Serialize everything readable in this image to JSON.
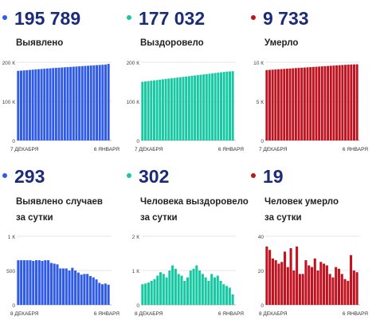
{
  "colors": {
    "blue": "#2f5be7",
    "teal": "#16c9a3",
    "red": "#c0121f",
    "number": "#1a2b7a"
  },
  "top": [
    {
      "value": "195 789",
      "label": "Выявлено",
      "color": "#2f5be7"
    },
    {
      "value": "177 032",
      "label": "Выздоровело",
      "color": "#16c9a3"
    },
    {
      "value": "9 733",
      "label": "Умерло",
      "color": "#c0121f"
    }
  ],
  "bottom": [
    {
      "value": "293",
      "label_line1": "Выявлено случаев",
      "label_line2": "за сутки",
      "color": "#2f5be7"
    },
    {
      "value": "302",
      "label_line1": "Человека выздоровело",
      "label_line2": "за сутки",
      "color": "#16c9a3"
    },
    {
      "value": "19",
      "label_line1": "Человек умерло",
      "label_line2": "за сутки",
      "color": "#c0121f"
    }
  ],
  "chart_data": [
    {
      "type": "bar",
      "name": "Выявлено",
      "color": "#2f5be7",
      "yticks": [
        "0",
        "100 К",
        "200 К"
      ],
      "ytick_values": [
        0,
        100000,
        200000
      ],
      "ylim": [
        0,
        200000
      ],
      "x_start_label": "7 ДЕКАБРЯ",
      "x_end_label": "6 ЯНВАРЯ",
      "values": [
        178000,
        178600,
        179200,
        179800,
        180400,
        181000,
        181600,
        182200,
        182800,
        183400,
        184000,
        184600,
        185100,
        185600,
        186100,
        186600,
        187100,
        187600,
        188100,
        188600,
        189100,
        189600,
        190100,
        190600,
        191100,
        191600,
        192100,
        192600,
        193100,
        193600,
        194100,
        195789
      ]
    },
    {
      "type": "bar",
      "name": "Выздоровело",
      "color": "#16c9a3",
      "yticks": [
        "0",
        "100 К",
        "200 К"
      ],
      "ytick_values": [
        0,
        100000,
        200000
      ],
      "ylim": [
        0,
        200000
      ],
      "x_start_label": "7 ДЕКАБРЯ",
      "x_end_label": "6 ЯНВАРЯ",
      "values": [
        150000,
        150900,
        151800,
        152700,
        153600,
        154500,
        155400,
        156300,
        157200,
        158100,
        159000,
        159900,
        160800,
        161700,
        162600,
        163500,
        164400,
        165300,
        166200,
        167100,
        168000,
        168900,
        169800,
        170700,
        171600,
        172500,
        173400,
        174300,
        175200,
        176000,
        176600,
        177032
      ]
    },
    {
      "type": "bar",
      "name": "Умерло",
      "color": "#c0121f",
      "yticks": [
        "0",
        "5 К",
        "10 К"
      ],
      "ytick_values": [
        0,
        5000,
        10000
      ],
      "ylim": [
        0,
        10000
      ],
      "x_start_label": "7 ДЕКАБРЯ",
      "x_end_label": "6 ЯНВАРЯ",
      "values": [
        9000,
        9025,
        9050,
        9075,
        9100,
        9125,
        9150,
        9175,
        9200,
        9225,
        9250,
        9275,
        9300,
        9325,
        9350,
        9375,
        9400,
        9425,
        9450,
        9475,
        9500,
        9525,
        9550,
        9575,
        9600,
        9625,
        9650,
        9670,
        9690,
        9710,
        9720,
        9733
      ]
    },
    {
      "type": "bar",
      "name": "Выявлено случаев за сутки",
      "color": "#2f5be7",
      "yticks": [
        "0",
        "500",
        "1 К"
      ],
      "ytick_values": [
        0,
        500,
        1000
      ],
      "ylim": [
        0,
        1000
      ],
      "x_start_label": "8 ДЕКАБРЯ",
      "x_end_label": "6 ЯНВАРЯ",
      "values": [
        650,
        650,
        650,
        650,
        650,
        640,
        650,
        650,
        640,
        650,
        650,
        610,
        600,
        590,
        530,
        530,
        530,
        500,
        540,
        500,
        470,
        440,
        450,
        450,
        420,
        400,
        370,
        320,
        300,
        310,
        293
      ]
    },
    {
      "type": "bar",
      "name": "Человека выздоровело за сутки",
      "color": "#16c9a3",
      "yticks": [
        "0",
        "1 К",
        "2 К"
      ],
      "ytick_values": [
        0,
        1000,
        2000
      ],
      "ylim": [
        0,
        2000
      ],
      "x_start_label": "8 ДЕКАБРЯ",
      "x_end_label": "6 ЯНВАРЯ",
      "values": [
        600,
        620,
        650,
        700,
        750,
        850,
        950,
        900,
        800,
        1000,
        1150,
        1050,
        900,
        850,
        700,
        800,
        1000,
        1050,
        1150,
        1000,
        900,
        800,
        700,
        900,
        800,
        850,
        700,
        600,
        550,
        500,
        302
      ]
    },
    {
      "type": "bar",
      "name": "Человек умерло за сутки",
      "color": "#c0121f",
      "yticks": [
        "0",
        "20",
        "40"
      ],
      "ytick_values": [
        0,
        20,
        40
      ],
      "ylim": [
        0,
        40
      ],
      "x_start_label": "8 ДЕКАБРЯ",
      "x_end_label": "6 ЯНВАРЯ",
      "values": [
        34,
        32,
        27,
        26,
        24,
        25,
        31,
        22,
        33,
        20,
        34,
        18,
        18,
        26,
        23,
        22,
        27,
        20,
        25,
        24,
        23,
        18,
        16,
        22,
        21,
        18,
        15,
        14,
        29,
        20,
        19
      ]
    }
  ]
}
